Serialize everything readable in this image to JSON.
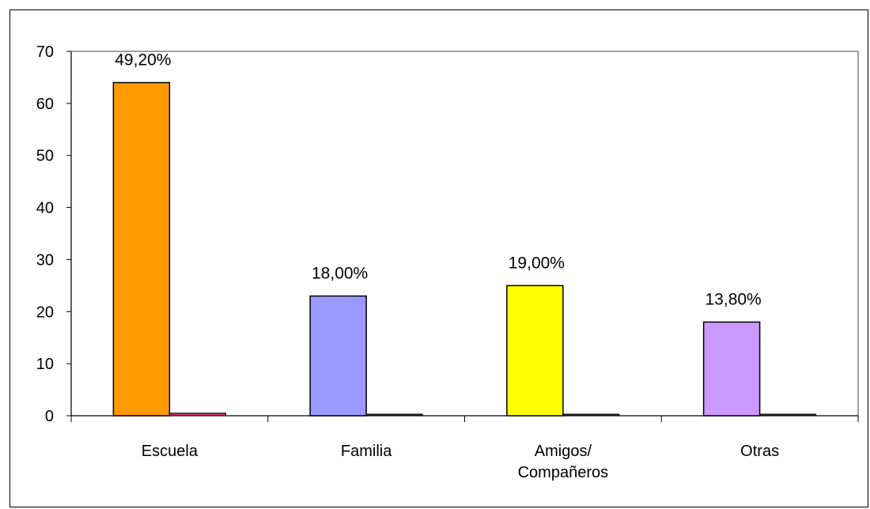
{
  "chart_data": {
    "type": "bar",
    "categories": [
      "Escuela",
      "Familia",
      "Amigos/\nCompañeros",
      "Otras"
    ],
    "series": [
      {
        "values": [
          64,
          23,
          25,
          18
        ],
        "colors": [
          "#FF9900",
          "#9999FF",
          "#FFFF00",
          "#CC99FF"
        ]
      },
      {
        "values": [
          0.5,
          0.2,
          0.2,
          0.2
        ],
        "colors": [
          "#CC3366",
          "#333333",
          "#333333",
          "#333333"
        ]
      }
    ],
    "data_labels": [
      "49,20%",
      "18,00%",
      "19,00%",
      "13,80%"
    ],
    "ylim": [
      0,
      70
    ],
    "yticks": [
      0,
      10,
      20,
      30,
      40,
      50,
      60,
      70
    ],
    "grid": false,
    "legend": "none",
    "plot_background": "#FFFFFF",
    "axis_color": "#808080"
  }
}
